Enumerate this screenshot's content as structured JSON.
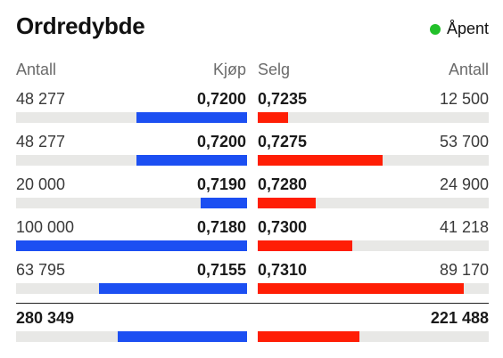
{
  "header": {
    "title": "Ordredybde",
    "status_label": "Åpent",
    "status_color": "#22c02a"
  },
  "columns": {
    "bid_qty": "Antall",
    "bid_price": "Kjøp",
    "ask_price": "Selg",
    "ask_qty": "Antall"
  },
  "colors": {
    "bid": "#1c4ff2",
    "ask": "#ff1e05",
    "track": "#e8e8e6"
  },
  "rows": [
    {
      "bid_qty": "48 277",
      "bid_price": "0,7200",
      "ask_price": "0,7235",
      "ask_qty": "12 500",
      "bid_ratio": 0.48,
      "ask_ratio": 0.13
    },
    {
      "bid_qty": "48 277",
      "bid_price": "0,7200",
      "ask_price": "0,7275",
      "ask_qty": "53 700",
      "bid_ratio": 0.48,
      "ask_ratio": 0.54
    },
    {
      "bid_qty": "20 000",
      "bid_price": "0,7190",
      "ask_price": "0,7280",
      "ask_qty": "24 900",
      "bid_ratio": 0.2,
      "ask_ratio": 0.25
    },
    {
      "bid_qty": "100 000",
      "bid_price": "0,7180",
      "ask_price": "0,7300",
      "ask_qty": "41 218",
      "bid_ratio": 1.0,
      "ask_ratio": 0.41
    },
    {
      "bid_qty": "63 795",
      "bid_price": "0,7155",
      "ask_price": "0,7310",
      "ask_qty": "89 170",
      "bid_ratio": 0.64,
      "ask_ratio": 0.89
    }
  ],
  "totals": {
    "bid_total": "280 349",
    "ask_total": "221 488",
    "bid_ratio": 0.56,
    "ask_ratio": 0.44
  }
}
